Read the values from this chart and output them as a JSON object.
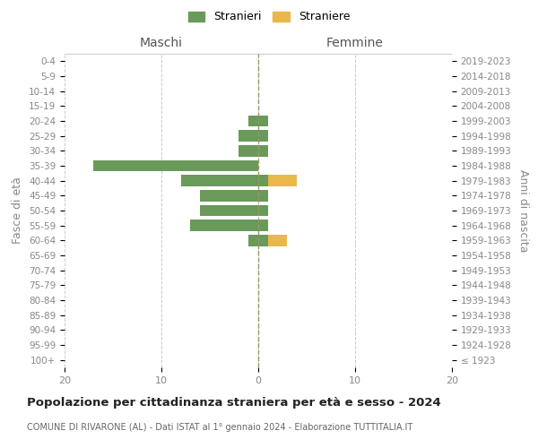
{
  "age_groups": [
    "100+",
    "95-99",
    "90-94",
    "85-89",
    "80-84",
    "75-79",
    "70-74",
    "65-69",
    "60-64",
    "55-59",
    "50-54",
    "45-49",
    "40-44",
    "35-39",
    "30-34",
    "25-29",
    "20-24",
    "15-19",
    "10-14",
    "5-9",
    "0-4"
  ],
  "birth_years": [
    "≤ 1923",
    "1924-1928",
    "1929-1933",
    "1934-1938",
    "1939-1943",
    "1944-1948",
    "1949-1953",
    "1954-1958",
    "1959-1963",
    "1964-1968",
    "1969-1973",
    "1974-1978",
    "1979-1983",
    "1984-1988",
    "1989-1993",
    "1994-1998",
    "1999-2003",
    "2004-2008",
    "2009-2013",
    "2014-2018",
    "2019-2023"
  ],
  "males_stranieri": [
    0,
    0,
    0,
    0,
    0,
    0,
    0,
    0,
    1,
    7,
    6,
    6,
    8,
    17,
    2,
    2,
    1,
    0,
    0,
    0,
    0
  ],
  "females_stranieri": [
    0,
    0,
    0,
    0,
    0,
    0,
    0,
    0,
    1,
    1,
    1,
    1,
    1,
    0,
    1,
    1,
    1,
    0,
    0,
    0,
    0
  ],
  "females_straniere": [
    0,
    0,
    0,
    0,
    0,
    0,
    0,
    0,
    2,
    0,
    0,
    0,
    3,
    0,
    0,
    0,
    0,
    0,
    0,
    0,
    0
  ],
  "color_stranieri": "#6a9a5a",
  "color_straniere": "#e8b84b",
  "title": "Popolazione per cittadinanza straniera per età e sesso - 2024",
  "subtitle": "COMUNE DI RIVARONE (AL) - Dati ISTAT al 1° gennaio 2024 - Elaborazione TUTTITALIA.IT",
  "xlabel_left": "Maschi",
  "xlabel_right": "Femmine",
  "ylabel_left": "Fasce di età",
  "ylabel_right": "Anni di nascita",
  "xlim": 20,
  "legend_stranieri": "Stranieri",
  "legend_straniere": "Straniere",
  "background_color": "#ffffff",
  "grid_color": "#cccccc"
}
